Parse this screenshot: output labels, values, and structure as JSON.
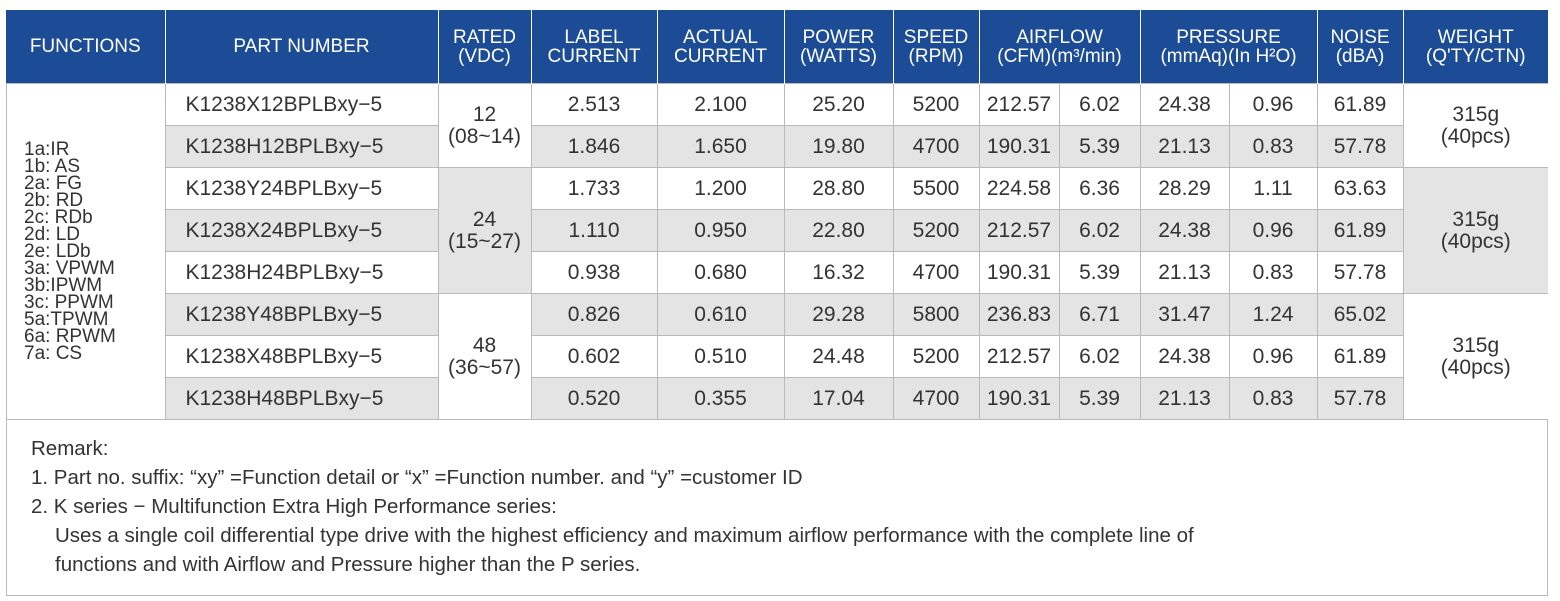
{
  "header": {
    "functions": [
      "FUNCTIONS"
    ],
    "part_number": [
      "PART NUMBER"
    ],
    "rated": [
      "RATED",
      "(VDC)"
    ],
    "label_current": [
      "LABEL",
      "CURRENT"
    ],
    "actual_current": [
      "ACTUAL",
      "CURRENT"
    ],
    "power": [
      "POWER",
      "(WATTS)"
    ],
    "speed": [
      "SPEED",
      "(RPM)"
    ],
    "airflow": [
      "AIRFLOW",
      "(CFM)(m³/min)"
    ],
    "pressure": [
      "PRESSURE",
      "(mmAq)(In H²O)"
    ],
    "noise": [
      "NOISE",
      "(dBA)"
    ],
    "weight": [
      "WEIGHT",
      "(Q'TY/CTN)"
    ]
  },
  "functions": [
    "1a:IR",
    "1b: AS",
    "2a: FG",
    "2b: RD",
    "2c: RDb",
    "2d: LD",
    "2e: LDb",
    "3a: VPWM",
    "3b:IPWM",
    "3c: PPWM",
    "5a:TPWM",
    "6a: RPWM",
    "7a: CS"
  ],
  "rated_groups": [
    {
      "value": "12",
      "range": "(08~14)"
    },
    {
      "value": "24",
      "range": "(15~27)"
    },
    {
      "value": "48",
      "range": "(36~57)"
    }
  ],
  "weight_groups": [
    {
      "weight": "315g",
      "qty": "(40pcs)"
    },
    {
      "weight": "315g",
      "qty": "(40pcs)"
    },
    {
      "weight": "315g",
      "qty": "(40pcs)"
    }
  ],
  "rows": [
    {
      "part": "K1238X12BPLBxy−5",
      "label_current": "2.513",
      "actual_current": "2.100",
      "power": "25.20",
      "speed": "5200",
      "cfm": "212.57",
      "m3min": "6.02",
      "mmaq": "24.38",
      "inh2o": "0.96",
      "noise": "61.89"
    },
    {
      "part": "K1238H12BPLBxy−5",
      "label_current": "1.846",
      "actual_current": "1.650",
      "power": "19.80",
      "speed": "4700",
      "cfm": "190.31",
      "m3min": "5.39",
      "mmaq": "21.13",
      "inh2o": "0.83",
      "noise": "57.78"
    },
    {
      "part": "K1238Y24BPLBxy−5",
      "label_current": "1.733",
      "actual_current": "1.200",
      "power": "28.80",
      "speed": "5500",
      "cfm": "224.58",
      "m3min": "6.36",
      "mmaq": "28.29",
      "inh2o": "1.11",
      "noise": "63.63"
    },
    {
      "part": "K1238X24BPLBxy−5",
      "label_current": "1.110",
      "actual_current": "0.950",
      "power": "22.80",
      "speed": "5200",
      "cfm": "212.57",
      "m3min": "6.02",
      "mmaq": "24.38",
      "inh2o": "0.96",
      "noise": "61.89"
    },
    {
      "part": "K1238H24BPLBxy−5",
      "label_current": "0.938",
      "actual_current": "0.680",
      "power": "16.32",
      "speed": "4700",
      "cfm": "190.31",
      "m3min": "5.39",
      "mmaq": "21.13",
      "inh2o": "0.83",
      "noise": "57.78"
    },
    {
      "part": "K1238Y48BPLBxy−5",
      "label_current": "0.826",
      "actual_current": "0.610",
      "power": "29.28",
      "speed": "5800",
      "cfm": "236.83",
      "m3min": "6.71",
      "mmaq": "31.47",
      "inh2o": "1.24",
      "noise": "65.02"
    },
    {
      "part": "K1238X48BPLBxy−5",
      "label_current": "0.602",
      "actual_current": "0.510",
      "power": "24.48",
      "speed": "5200",
      "cfm": "212.57",
      "m3min": "6.02",
      "mmaq": "24.38",
      "inh2o": "0.96",
      "noise": "61.89"
    },
    {
      "part": "K1238H48BPLBxy−5",
      "label_current": "0.520",
      "actual_current": "0.355",
      "power": "17.04",
      "speed": "4700",
      "cfm": "190.31",
      "m3min": "5.39",
      "mmaq": "21.13",
      "inh2o": "0.83",
      "noise": "57.78"
    }
  ],
  "remarks": {
    "title": "Remark:",
    "line1": "1. Part no. suffix: “xy” =Function detail or “x” =Function number. and “y” =customer ID",
    "line2": "2. K series − Multifunction Extra High Performance series:",
    "line3": "Uses a single coil differential type drive with the highest efficiency and maximum airflow performance with the complete line of",
    "line4": "functions and with Airflow and Pressure higher than the P series."
  },
  "colors": {
    "header_bg": "#1c4c96",
    "header_text": "#ffffff",
    "row_shade": "#e4e4e4",
    "border": "#b9b9b9",
    "text": "#333333"
  }
}
